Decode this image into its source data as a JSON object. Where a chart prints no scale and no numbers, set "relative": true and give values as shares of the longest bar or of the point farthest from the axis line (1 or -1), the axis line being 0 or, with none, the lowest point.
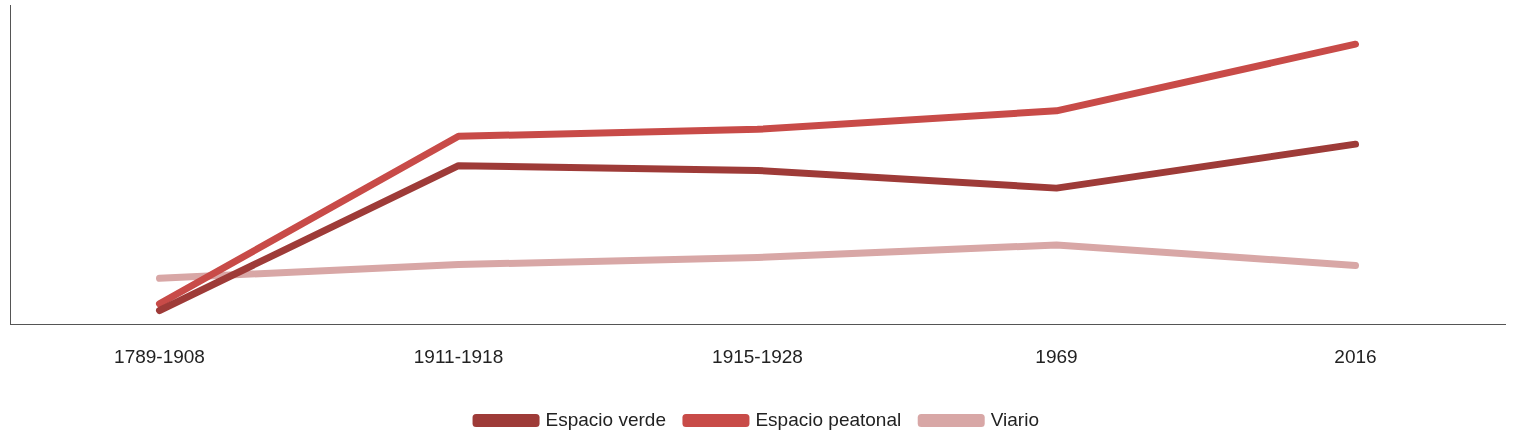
{
  "chart_data": {
    "type": "line",
    "relative": true,
    "categories": [
      "1789-1908",
      "1911-1918",
      "1915-1928",
      "1969",
      "2016"
    ],
    "series": [
      {
        "name": "Espacio verde",
        "color": "#9e3b38",
        "values": [
          0.049,
          0.566,
          0.549,
          0.486,
          0.643
        ]
      },
      {
        "name": "Espacio peatonal",
        "color": "#c84b48",
        "values": [
          0.073,
          0.671,
          0.696,
          0.762,
          1
        ]
      },
      {
        "name": "Viario",
        "color": "#d8a7a6",
        "values": [
          0.164,
          0.213,
          0.238,
          0.283,
          0.21
        ]
      }
    ],
    "legend": "bottom",
    "grid": false,
    "marker": "none",
    "line_style": "solid"
  }
}
